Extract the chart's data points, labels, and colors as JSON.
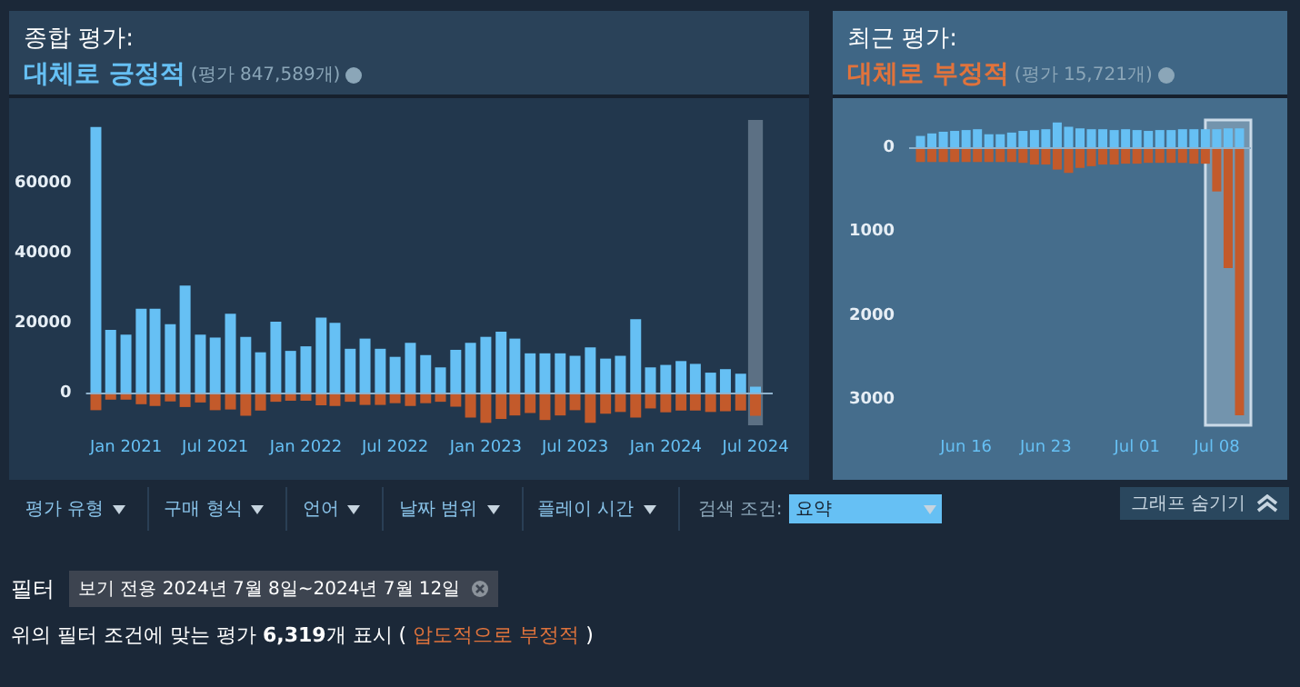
{
  "chart_data": [
    {
      "type": "bar",
      "title": "종합 평가:",
      "subtitle": "대체로 긍정적",
      "annotations": [
        "(평가 847,589개)"
      ],
      "stacked": true,
      "x": [
        "2020-11",
        "2020-12",
        "2021-01",
        "2021-02",
        "2021-03",
        "2021-04",
        "2021-05",
        "2021-06",
        "2021-07",
        "2021-08",
        "2021-09",
        "2021-10",
        "2021-11",
        "2021-12",
        "2022-01",
        "2022-02",
        "2022-03",
        "2022-04",
        "2022-05",
        "2022-06",
        "2022-07",
        "2022-08",
        "2022-09",
        "2022-10",
        "2022-11",
        "2022-12",
        "2023-01",
        "2023-02",
        "2023-03",
        "2023-04",
        "2023-05",
        "2023-06",
        "2023-07",
        "2023-08",
        "2023-09",
        "2023-10",
        "2023-11",
        "2023-12",
        "2024-01",
        "2024-02",
        "2024-03",
        "2024-04",
        "2024-05",
        "2024-06",
        "2024-07"
      ],
      "series": [
        {
          "color": "#66c0f4",
          "values": [
            76000,
            18200,
            16800,
            24200,
            24200,
            19800,
            30800,
            16800,
            16000,
            22800,
            16200,
            11800,
            20500,
            12200,
            13500,
            21700,
            20200,
            12800,
            15700,
            12800,
            10500,
            14500,
            11000,
            7500,
            12500,
            14500,
            16200,
            17700,
            15700,
            11500,
            11500,
            11500,
            10800,
            13200,
            10000,
            10800,
            21200,
            7500,
            8200,
            9300,
            8500,
            6000,
            7000,
            5700,
            2000
          ]
        },
        {
          "color": "#c35a2b",
          "values": [
            -4700,
            -1700,
            -1700,
            -3000,
            -3500,
            -2200,
            -3800,
            -2500,
            -4700,
            -4500,
            -6300,
            -4800,
            -2300,
            -2000,
            -2000,
            -3300,
            -3500,
            -2300,
            -3200,
            -3200,
            -2700,
            -3500,
            -2700,
            -2300,
            -3700,
            -6800,
            -8300,
            -7200,
            -6200,
            -5500,
            -7500,
            -6200,
            -4700,
            -8300,
            -5700,
            -5200,
            -6800,
            -4200,
            -5300,
            -4800,
            -4800,
            -5200,
            -5000,
            -4800,
            -6300
          ]
        }
      ],
      "xlim": [
        "2020-10-12",
        "2024-08-05"
      ],
      "xticks": [
        {
          "value": "2021-01",
          "label": "Jan 2021"
        },
        {
          "value": "2021-07",
          "label": "Jul 2021"
        },
        {
          "value": "2022-01",
          "label": "Jan 2022"
        },
        {
          "value": "2022-07",
          "label": "Jul 2022"
        },
        {
          "value": "2023-01",
          "label": "Jan 2023"
        },
        {
          "value": "2023-07",
          "label": "Jul 2023"
        },
        {
          "value": "2024-01",
          "label": "Jan 2024"
        },
        {
          "value": "2024-07",
          "label": "Jul 2024"
        }
      ],
      "ylim": [
        -9000,
        78000
      ],
      "yticks": [
        0,
        20000,
        40000,
        60000
      ],
      "ref_lines": [
        {
          "axis": "y",
          "value": 0,
          "color": "#8fb2cc"
        }
      ],
      "bands": [
        {
          "axis": "x",
          "from": "2024-06-16",
          "to": "2024-07-16"
        }
      ]
    },
    {
      "type": "bar",
      "title": "최근 평가:",
      "subtitle": "대체로 부정적",
      "annotations": [
        "(평가 15,721개)"
      ],
      "stacked": true,
      "x": [
        "--06-12",
        "--06-13",
        "--06-14",
        "--06-15",
        "--06-16",
        "--06-17",
        "--06-18",
        "--06-19",
        "--06-20",
        "--06-21",
        "--06-22",
        "--06-23",
        "--06-24",
        "--06-25",
        "--06-26",
        "--06-27",
        "--06-28",
        "--06-29",
        "--06-30",
        "--07-01",
        "--07-02",
        "--07-03",
        "--07-04",
        "--07-05",
        "--07-06",
        "--07-07",
        "--07-08",
        "--07-09",
        "--07-10"
      ],
      "series": [
        {
          "color": "#66c0f4",
          "values": [
            140,
            170,
            190,
            200,
            210,
            220,
            160,
            160,
            180,
            200,
            210,
            220,
            300,
            250,
            230,
            220,
            220,
            210,
            220,
            210,
            200,
            210,
            210,
            220,
            220,
            220,
            220,
            230,
            230
          ]
        },
        {
          "color": "#c35a2b",
          "values": [
            -170,
            -170,
            -170,
            -170,
            -170,
            -170,
            -170,
            -170,
            -170,
            -180,
            -200,
            -200,
            -260,
            -300,
            -240,
            -220,
            -200,
            -200,
            -190,
            -190,
            -180,
            -180,
            -180,
            -180,
            -190,
            -190,
            -520,
            -1430,
            -3180
          ]
        }
      ],
      "xlim": [
        "--06-11",
        "--07-11"
      ],
      "xticks": [
        {
          "value": "--06-16",
          "label": "Jun 16"
        },
        {
          "value": "--06-23",
          "label": "Jun 23"
        },
        {
          "value": "--07-01",
          "label": "Jul 01"
        },
        {
          "value": "--07-08",
          "label": "Jul 08"
        }
      ],
      "ylim": [
        -3300,
        330
      ],
      "yticks": [
        0,
        {
          "value": -1000,
          "label": "1000"
        },
        {
          "value": -2000,
          "label": "2000"
        },
        {
          "value": -3000,
          "label": "3000"
        }
      ],
      "ref_lines": [
        {
          "axis": "y",
          "value": 0,
          "color": "#8fb2cc"
        }
      ],
      "bands": [
        {
          "axis": "x",
          "from": "--07-07",
          "to": "--07-11"
        }
      ]
    },
    {
      "type": "other",
      "annotations": [
        "평가 유형",
        "구매 형식",
        "언어",
        "날짜 범위",
        "플레이 시간",
        "검색 조건:",
        "요약",
        "그래프 숨기기",
        "필터",
        "보기 전용 2024년 7월 8일~2024년 7월 12일",
        "위의 필터 조건에 맞는 평가",
        "6,319",
        "개 표시 (",
        "압도적으로 부정적",
        ")"
      ]
    }
  ]
}
